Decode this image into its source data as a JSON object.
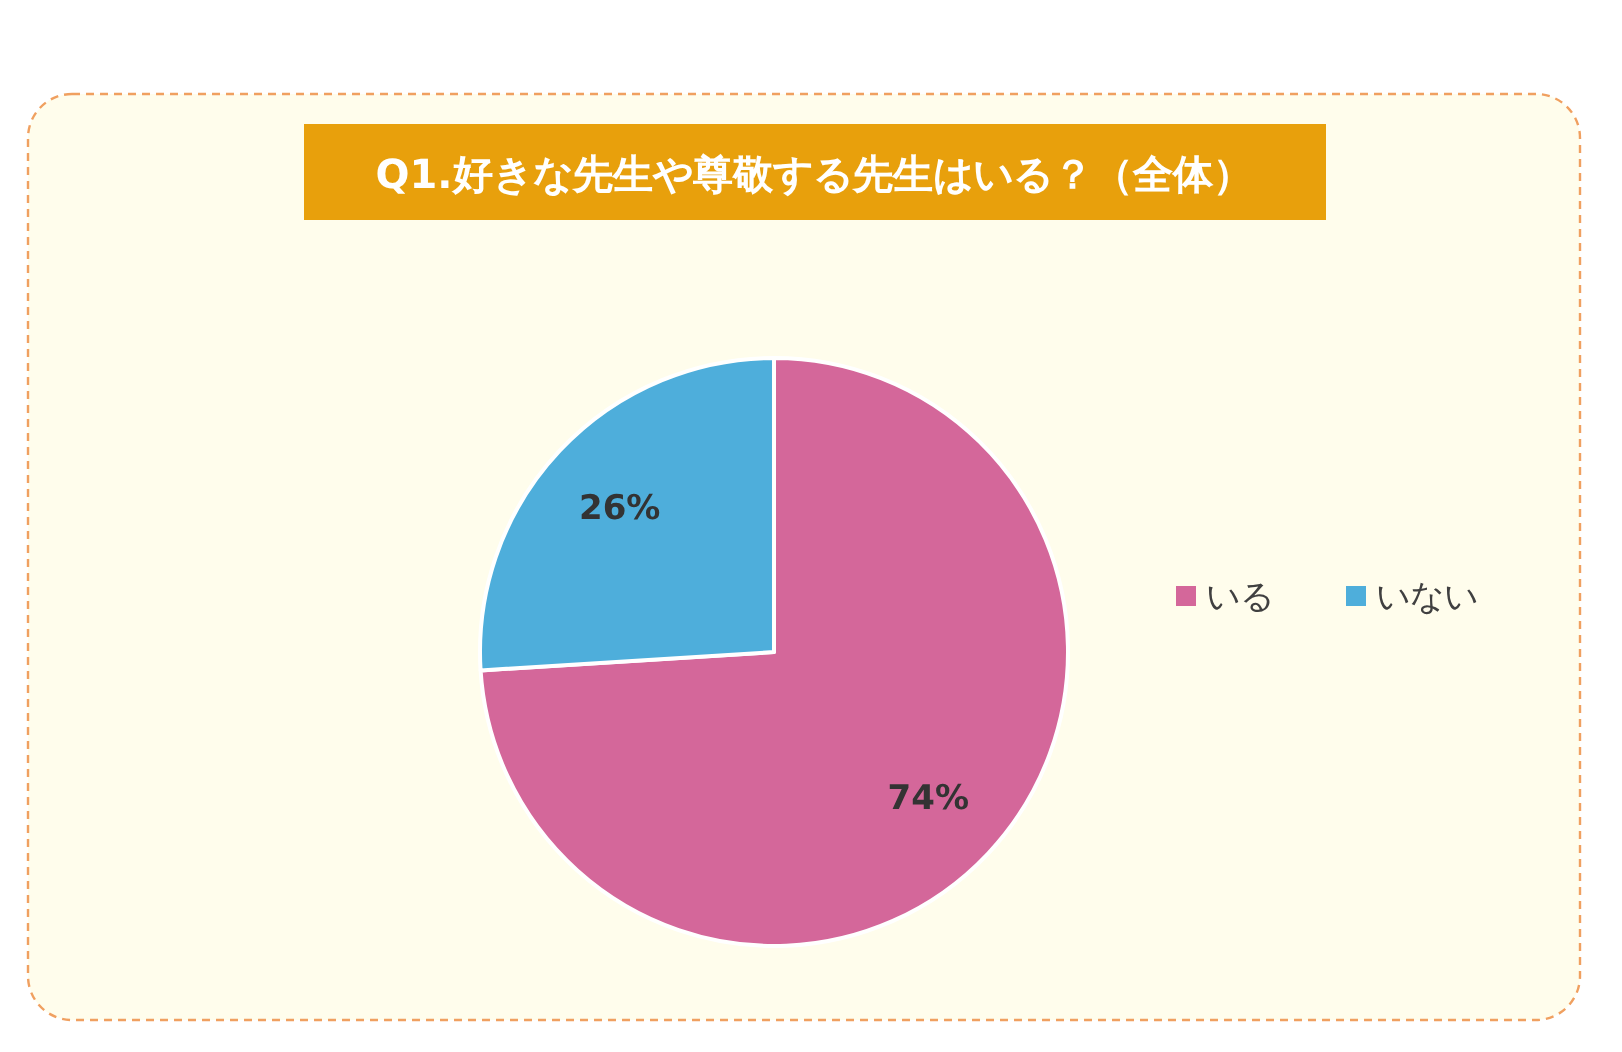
{
  "chart_data": {
    "type": "pie",
    "title": "Q1.好きな先生や尊敬する先生はいる？（全体）",
    "categories": [
      "いる",
      "いない"
    ],
    "values": [
      74,
      26
    ],
    "colors": [
      "#d4679a",
      "#4eaedb"
    ],
    "value_labels": [
      "74%",
      "26%"
    ],
    "legend": "right"
  }
}
